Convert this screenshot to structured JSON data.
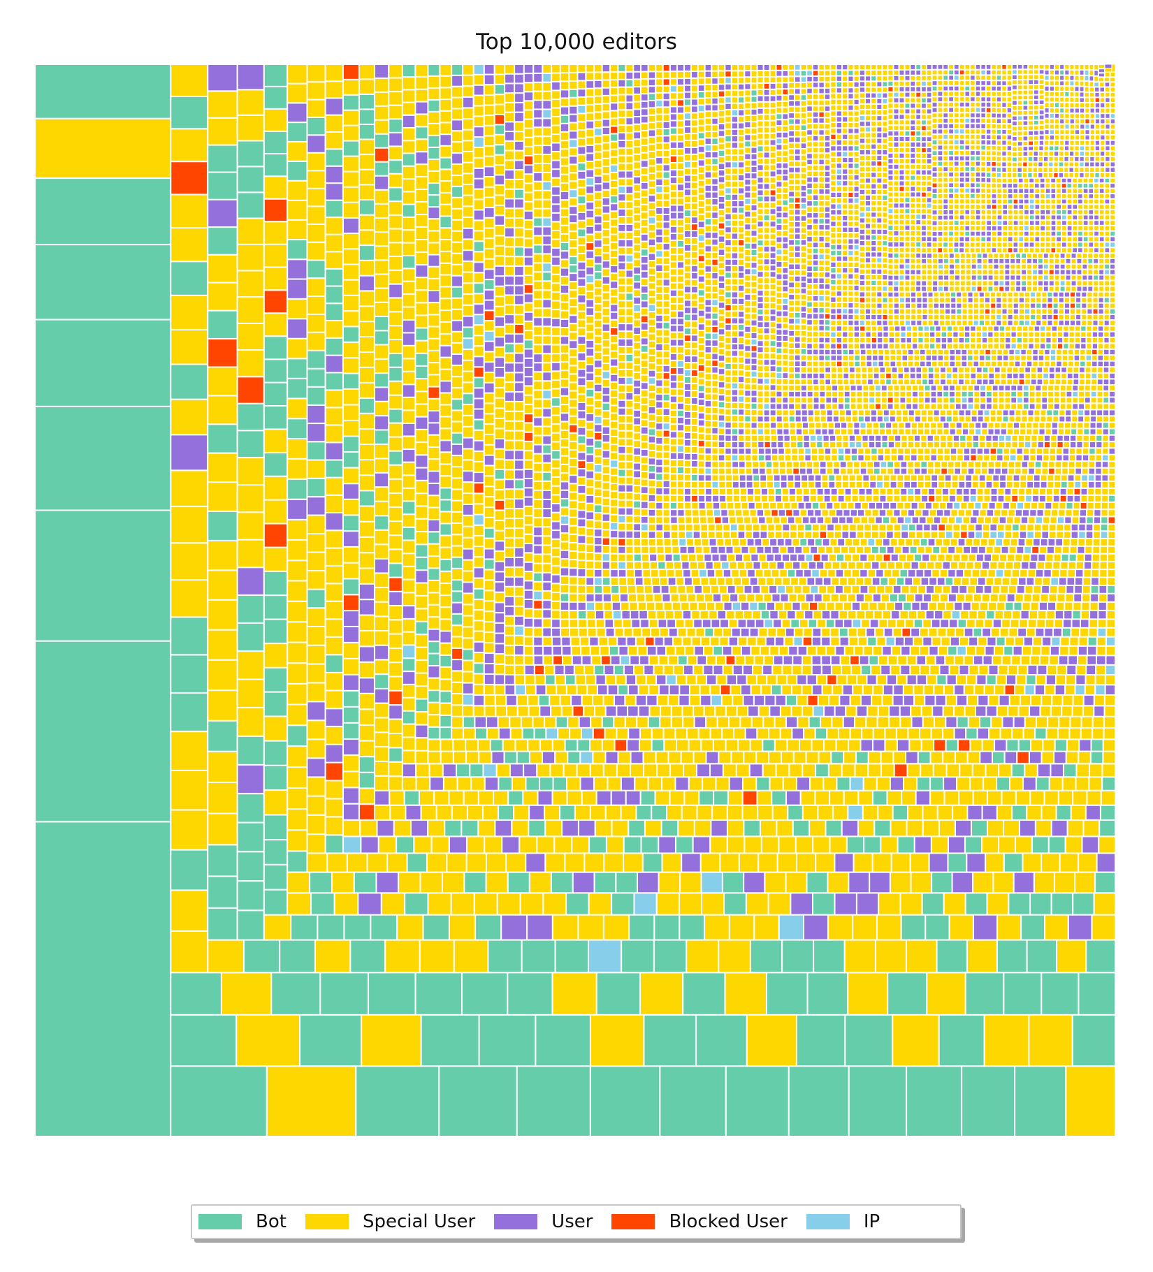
{
  "chart_data": {
    "type": "treemap",
    "title": "Top 10,000 editors",
    "total_items": 10000,
    "categories": [
      {
        "name": "Bot",
        "color": "#66cdaa"
      },
      {
        "name": "Special User",
        "color": "#ffd700"
      },
      {
        "name": "User",
        "color": "#9370db"
      },
      {
        "name": "Blocked User",
        "color": "#ff4500"
      },
      {
        "name": "IP",
        "color": "#87ceeb"
      }
    ],
    "legend": {
      "placement": "bottom-center",
      "frame": true,
      "shadow": true
    },
    "layout_order": "largest editors in the bottom-left corner, sizes decreasing toward the top-right",
    "largest_rows": [
      [
        "Bot",
        "Special User",
        "Bot",
        "Bot",
        "Bot",
        "Bot",
        "Bot",
        "Bot",
        "Bot",
        "Bot"
      ],
      [
        "Bot",
        "Bot",
        "Bot",
        "Special User",
        "Bot",
        "Special User",
        "Bot",
        "Special User",
        "Bot",
        "Bot",
        "Bot",
        "Special User",
        "Bot",
        "Bot"
      ],
      [
        "Special User",
        "Bot",
        "Bot",
        "Special User",
        "Bot",
        "Special User",
        "Special User",
        "Bot",
        "Bot",
        "Special User",
        "Bot",
        "Bot",
        "Bot",
        "Bot",
        "Bot",
        "Bot",
        "Special User",
        "Bot",
        "Special User",
        "Bot"
      ],
      [
        "Special User",
        "Bot",
        "Bot",
        "Special User",
        "Bot",
        "Special User",
        "Bot",
        "Bot",
        "Bot",
        "Bot",
        "Special User",
        "Special User",
        "Bot",
        "Special User",
        "Special User",
        "Special User",
        "Bot",
        "Bot",
        "Bot",
        "Special User",
        "Special User",
        "Special User",
        "Special User",
        "User",
        "Special User"
      ]
    ],
    "approximate_share": {
      "Bot": 0.24,
      "Special User": 0.54,
      "User": 0.17,
      "Blocked User": 0.02,
      "IP": 0.03
    }
  }
}
